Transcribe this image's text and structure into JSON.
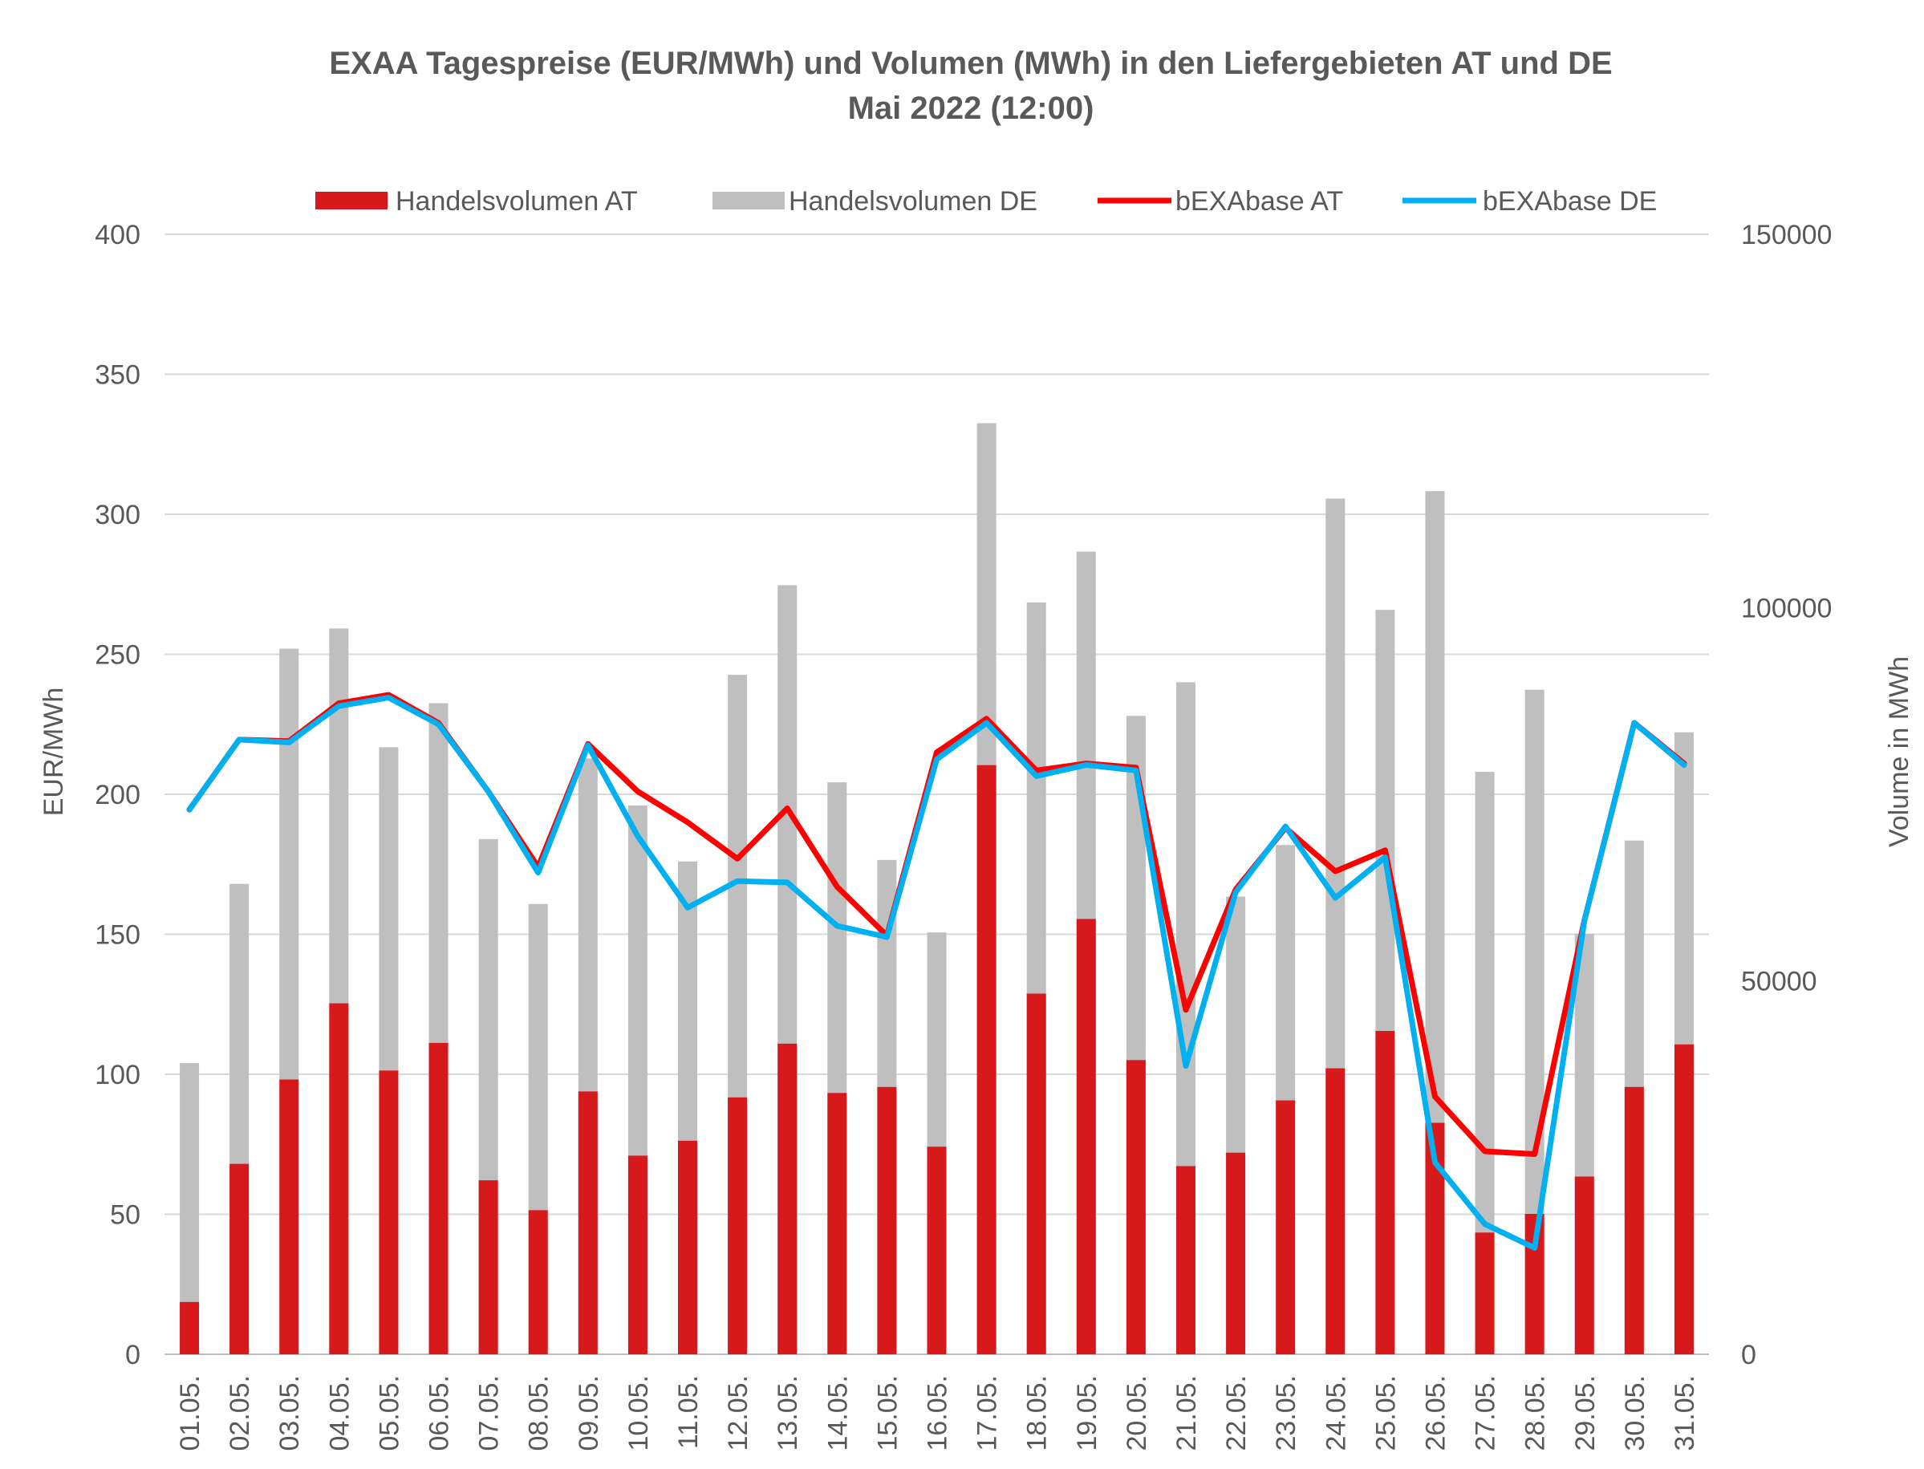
{
  "chart_data": {
    "type": "bar",
    "title": "EXAA Tagespreise (EUR/MWh) und Volumen (MWh) in den Liefergebieten AT und DE",
    "subtitle": "Mai 2022 (12:00)",
    "ylabel": "EUR/MWh",
    "y2label": "Volume in MWh",
    "ylim": [
      0,
      400
    ],
    "y2lim": [
      0,
      150000
    ],
    "yticks": [
      0,
      50,
      100,
      150,
      200,
      250,
      300,
      350,
      400
    ],
    "y2ticks": [
      0,
      50000,
      100000,
      150000
    ],
    "grid": true,
    "legend_position": "top",
    "categories": [
      "01.05.",
      "02.05.",
      "03.05.",
      "04.05.",
      "05.05.",
      "06.05.",
      "07.05.",
      "08.05.",
      "09.05.",
      "10.05.",
      "11.05.",
      "12.05.",
      "13.05.",
      "14.05.",
      "15.05.",
      "16.05.",
      "17.05.",
      "18.05.",
      "19.05.",
      "20.05.",
      "21.05.",
      "22.05.",
      "23.05.",
      "24.05.",
      "25.05.",
      "26.05.",
      "27.05.",
      "28.05.",
      "29.05.",
      "30.05.",
      "31.05."
    ],
    "series": [
      {
        "name": "Handelsvolumen AT",
        "kind": "bar",
        "axis": "right",
        "color": "#d7191c",
        "values": [
          7000,
          25500,
          36800,
          47000,
          38000,
          41700,
          23300,
          19300,
          35200,
          26600,
          28600,
          34400,
          41600,
          35000,
          35800,
          27800,
          78900,
          48300,
          58300,
          39400,
          25200,
          27000,
          34000,
          38300,
          43300,
          31000,
          16300,
          18800,
          23800,
          35800,
          41500
        ]
      },
      {
        "name": "Handelsvolumen DE",
        "kind": "bar",
        "axis": "right",
        "color": "#bfbfbf",
        "values": [
          39000,
          63000,
          94500,
          97200,
          81300,
          87200,
          69000,
          60300,
          79800,
          73500,
          66000,
          91000,
          103000,
          76600,
          66200,
          56500,
          124700,
          100700,
          107500,
          85500,
          90000,
          61300,
          68200,
          114600,
          99700,
          115600,
          78000,
          89000,
          56300,
          68800,
          83300
        ]
      },
      {
        "name": "bEXAbase AT",
        "kind": "line",
        "axis": "left",
        "color": "#ff0000",
        "values": [
          194.5,
          219.5,
          219,
          232.5,
          235.5,
          225.5,
          201,
          174,
          218,
          201,
          190,
          177,
          195,
          167,
          149.5,
          215,
          227,
          208.5,
          211,
          209.5,
          123,
          166,
          188,
          172.5,
          180,
          92,
          72.5,
          71.5,
          155,
          225.5,
          211
        ]
      },
      {
        "name": "bEXAbase DE",
        "kind": "line",
        "axis": "left",
        "color": "#00b0f0",
        "values": [
          194.5,
          219.5,
          218.5,
          231.5,
          234.5,
          225,
          201,
          172,
          217.5,
          185,
          159.5,
          169,
          168.5,
          153,
          149,
          212.5,
          225.5,
          206.5,
          210.5,
          208.5,
          103,
          165,
          188.5,
          163,
          177.5,
          68.5,
          46.5,
          38,
          155,
          225.5,
          210.5
        ]
      }
    ]
  }
}
